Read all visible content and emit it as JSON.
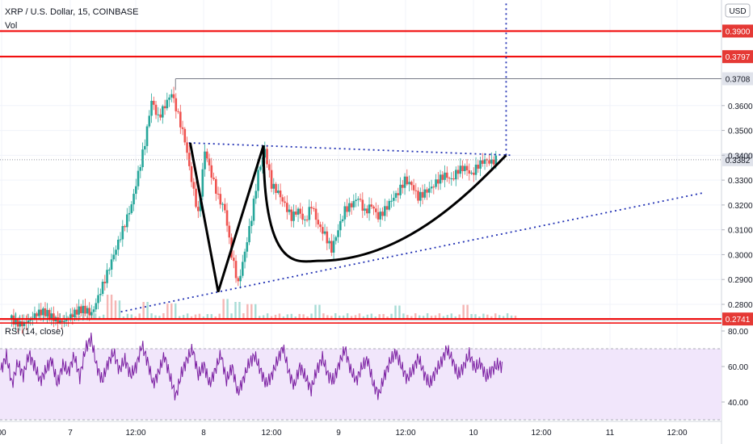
{
  "header": {
    "symbol": "XRP / U.S. Dollar, 15, COINBASE",
    "volume_label": "Vol",
    "currency": "USD"
  },
  "colors": {
    "up": "#26a69a",
    "down": "#ef5350",
    "red_level": "#f00000",
    "blue_dotted": "#1f2fb3",
    "rsi": "#7b1fa2",
    "rsi_band": "#f1e6fb"
  },
  "chart_data": [
    {
      "type": "candlestick",
      "price_axis": {
        "ticks": [
          "0.3600",
          "0.3500",
          "0.3400",
          "0.3300",
          "0.3200",
          "0.3100",
          "0.3000",
          "0.2900",
          "0.2800"
        ],
        "range": [
          0.2735,
          0.4025
        ]
      },
      "time_axis": {
        "ticks": [
          "00",
          "7",
          "12:00",
          "8",
          "12:00",
          "9",
          "12:00",
          "10",
          "12:00",
          "11",
          "12:00"
        ]
      },
      "levels": [
        {
          "label": "0.3900",
          "value": 0.39,
          "style": "red"
        },
        {
          "label": "0.3797",
          "value": 0.3797,
          "style": "red"
        },
        {
          "label": "0.3708",
          "value": 0.3708,
          "style": "dark"
        },
        {
          "label": "0.3382",
          "value": 0.3382,
          "style": "dark"
        },
        {
          "label": "0.2741",
          "value": 0.2741,
          "style": "red"
        }
      ],
      "price_path": [
        [
          0,
          0.274
        ],
        [
          6,
          0.276
        ],
        [
          7,
          0.29
        ],
        [
          8,
          0.305
        ],
        [
          9,
          0.32
        ],
        [
          10,
          0.345
        ],
        [
          10.5,
          0.362
        ],
        [
          11,
          0.355
        ],
        [
          12,
          0.365
        ],
        [
          12.5,
          0.356
        ],
        [
          13,
          0.346
        ],
        [
          13.5,
          0.33
        ],
        [
          14,
          0.316
        ],
        [
          14.5,
          0.342
        ],
        [
          15,
          0.332
        ],
        [
          15.5,
          0.323
        ],
        [
          16,
          0.318
        ],
        [
          16.5,
          0.3
        ],
        [
          17,
          0.288
        ],
        [
          17.5,
          0.301
        ],
        [
          18,
          0.315
        ],
        [
          18.5,
          0.333
        ],
        [
          19,
          0.342
        ],
        [
          19.5,
          0.328
        ],
        [
          20,
          0.325
        ],
        [
          20.5,
          0.32
        ],
        [
          21,
          0.315
        ],
        [
          21.5,
          0.318
        ],
        [
          22,
          0.313
        ],
        [
          22.5,
          0.32
        ],
        [
          23,
          0.312
        ],
        [
          23.5,
          0.308
        ],
        [
          24,
          0.302
        ],
        [
          24.5,
          0.31
        ],
        [
          25,
          0.318
        ],
        [
          25.5,
          0.32
        ],
        [
          26,
          0.323
        ],
        [
          26.5,
          0.317
        ],
        [
          27,
          0.32
        ],
        [
          27.5,
          0.315
        ],
        [
          28,
          0.318
        ],
        [
          28.5,
          0.322
        ],
        [
          29,
          0.325
        ],
        [
          29.5,
          0.33
        ],
        [
          30,
          0.328
        ],
        [
          30.5,
          0.323
        ],
        [
          31,
          0.325
        ],
        [
          31.5,
          0.327
        ],
        [
          32,
          0.33
        ],
        [
          32.5,
          0.332
        ],
        [
          33,
          0.33
        ],
        [
          33.5,
          0.334
        ],
        [
          34,
          0.335
        ],
        [
          34.5,
          0.332
        ],
        [
          35,
          0.336
        ],
        [
          35.5,
          0.338
        ],
        [
          36,
          0.337
        ],
        [
          36.5,
          0.339
        ]
      ],
      "volume_spikes": [
        [
          7.5,
          1.0
        ],
        [
          8,
          0.6
        ],
        [
          10,
          0.5
        ],
        [
          12,
          0.4
        ],
        [
          16,
          0.7
        ],
        [
          17,
          0.5
        ],
        [
          18,
          0.35
        ],
        [
          23,
          0.3
        ],
        [
          29,
          0.25
        ],
        [
          34,
          0.3
        ]
      ],
      "patterns": {
        "resistance_dotted": {
          "from": [
            13.3,
            0.345
          ],
          "to": [
            37.6,
            0.34
          ]
        },
        "support_dotted": {
          "from": [
            8.2,
            0.277
          ],
          "to": [
            52,
            0.325
          ]
        },
        "projection_dotted": {
          "from": [
            37.1,
            0.34
          ],
          "to": [
            37.1,
            0.402
          ]
        },
        "w_pattern": [
          [
            13.4,
            0.345
          ],
          [
            15.5,
            0.285
          ],
          [
            18.9,
            0.344
          ]
        ],
        "cup_curve": {
          "start": [
            18.9,
            0.344
          ],
          "bottom": [
            23.0,
            0.2975
          ],
          "end": [
            37.1,
            0.34
          ]
        }
      }
    },
    {
      "type": "line",
      "title": "RSI (14, close)",
      "y_ticks": [
        "80.00",
        "60.00",
        "40.00"
      ],
      "ylim": [
        30,
        85
      ],
      "band": [
        30,
        70
      ],
      "values": [
        58,
        66,
        50,
        62,
        55,
        67,
        60,
        52,
        58,
        64,
        50,
        61,
        57,
        66,
        54,
        70,
        76,
        60,
        52,
        62,
        68,
        58,
        64,
        55,
        60,
        72,
        63,
        50,
        57,
        66,
        54,
        43,
        56,
        64,
        70,
        55,
        61,
        50,
        58,
        67,
        52,
        60,
        45,
        53,
        62,
        66,
        58,
        50,
        55,
        63,
        71,
        57,
        49,
        60,
        54,
        47,
        58,
        65,
        55,
        52,
        62,
        70,
        58,
        52,
        60,
        64,
        50,
        44,
        55,
        63,
        68,
        60,
        53,
        58,
        65,
        56,
        50,
        57,
        62,
        70,
        64,
        55,
        60,
        67,
        59,
        62,
        54,
        58,
        61,
        60
      ]
    }
  ]
}
